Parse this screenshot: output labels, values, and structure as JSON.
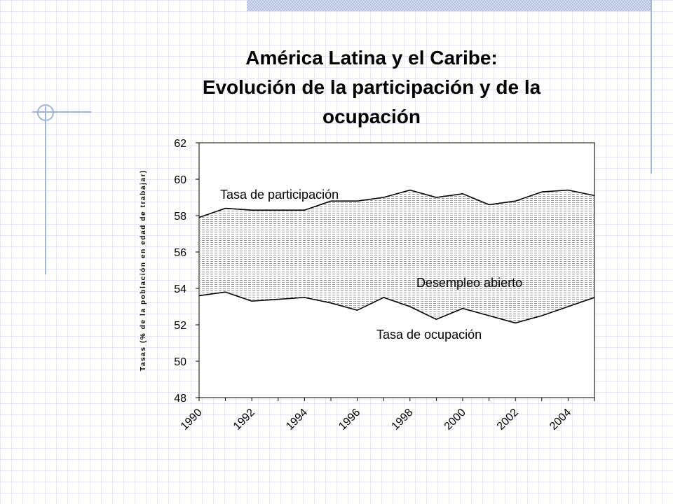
{
  "slide": {
    "title_line1": "América Latina y el Caribe:",
    "title_line2": "Evolución de la participación y de la",
    "title_line3": "ocupación"
  },
  "chart_data": {
    "type": "area",
    "title": "América Latina y el Caribe: Evolución de la participación y de la ocupación",
    "ylabel": "Tasas (% de la población en edad de trabajar)",
    "xlabel": "",
    "ylim": [
      48,
      62
    ],
    "yticks": [
      48,
      50,
      52,
      54,
      56,
      58,
      60,
      62
    ],
    "xlim": [
      1990,
      2005
    ],
    "xticks": [
      "1990",
      "1992",
      "1994",
      "1996",
      "1998",
      "2000",
      "2002",
      "2004"
    ],
    "x": [
      1990,
      1991,
      1992,
      1993,
      1994,
      1995,
      1996,
      1997,
      1998,
      1999,
      2000,
      2001,
      2002,
      2003,
      2004,
      2005
    ],
    "series": [
      {
        "name": "Tasa de participación",
        "values": [
          57.9,
          58.4,
          58.3,
          58.3,
          58.3,
          58.8,
          58.8,
          59.0,
          59.4,
          59.0,
          59.2,
          58.6,
          58.8,
          59.3,
          59.4,
          59.1
        ]
      },
      {
        "name": "Tasa de ocupación",
        "values": [
          53.6,
          53.8,
          53.3,
          53.4,
          53.5,
          53.2,
          52.8,
          53.5,
          53.0,
          52.3,
          52.9,
          52.5,
          52.1,
          52.5,
          53.0,
          53.5
        ]
      }
    ],
    "area_label": "Desempleo abierto",
    "grid": false,
    "legend": "none"
  },
  "colors": {
    "line": "#000000",
    "hatch": "#9a9a9a"
  }
}
